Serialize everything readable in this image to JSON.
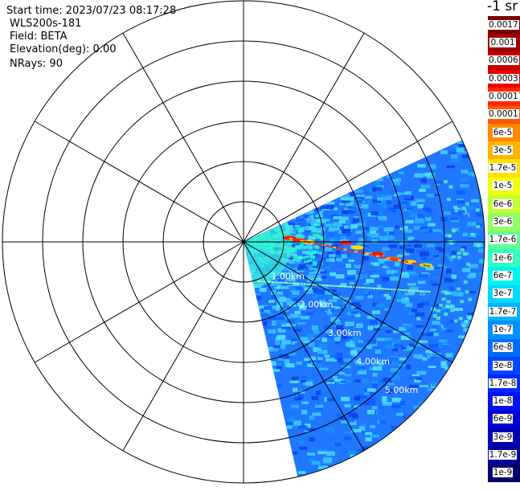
{
  "header": {
    "start_time": "Start time: 2023/07/23 08:17:28",
    "instrument": "WLS200s-181",
    "field": "Field: BETA",
    "elevation": "Elevation(deg): 0.00",
    "nrays": "NRays: 90"
  },
  "colorbar": {
    "units": "-1 sr",
    "ticks": [
      "0.0017",
      "0.001",
      "0.0006",
      "0.0003",
      "0.00017",
      "0.0001",
      "6e-5",
      "3e-5",
      "1.7e-5",
      "1e-5",
      "6e-6",
      "3e-6",
      "1.7e-6",
      "1e-6",
      "6e-7",
      "3e-7",
      "1.7e-7",
      "1e-7",
      "6e-8",
      "3e-8",
      "1.7e-8",
      "1e-8",
      "6e-9",
      "3e-9",
      "1.7e-9",
      "1e-9"
    ],
    "colors": [
      "#7a0000",
      "#a00000",
      "#c80000",
      "#e80000",
      "#ff2a00",
      "#ff5a00",
      "#ff8a00",
      "#ffb400",
      "#ffe000",
      "#f0ff10",
      "#c4ff30",
      "#90ff60",
      "#60ff90",
      "#30ffc0",
      "#00f4ee",
      "#00d8ff",
      "#00b4ff",
      "#0090ff",
      "#006cff",
      "#0048ff",
      "#0028ff",
      "#0010f0",
      "#0000d4",
      "#0000b4",
      "#000096",
      "#00006e"
    ]
  },
  "range_labels": [
    "1.00km",
    "2.00km",
    "3.00km",
    "4.00km",
    "5.00km"
  ],
  "scan_sector": {
    "start_deg": -25,
    "end_deg": 77
  }
}
